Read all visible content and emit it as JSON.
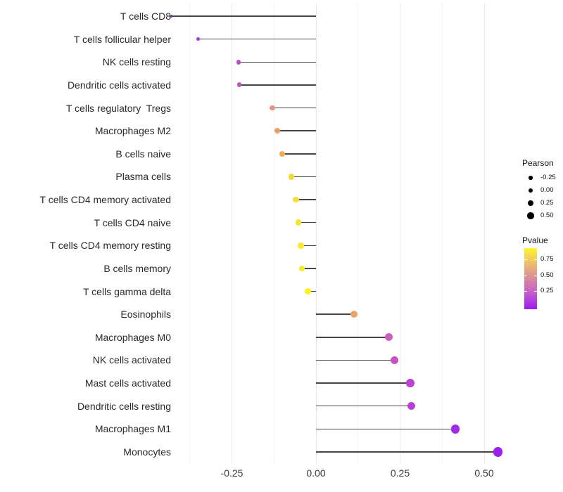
{
  "chart_data": {
    "type": "scatter",
    "variant": "horizontal-lollipop",
    "title": "",
    "xlabel": "",
    "ylabel": "",
    "x_ticks": [
      -0.25,
      0.0,
      0.25,
      0.5
    ],
    "x_minor_gridlines": [
      -0.375,
      -0.125,
      0.125,
      0.375
    ],
    "xlim": [
      -0.46,
      0.59
    ],
    "grid": "vertical major+minor, light gray, white background",
    "points": [
      {
        "label": "T cells CD8",
        "pearson": -0.43,
        "color": "#8322D8"
      },
      {
        "label": "T cells follicular helper",
        "pearson": -0.35,
        "color": "#A637D8"
      },
      {
        "label": "NK cells resting",
        "pearson": -0.23,
        "color": "#BD4EC5"
      },
      {
        "label": "Dendritic cells activated",
        "pearson": -0.228,
        "color": "#C156BE"
      },
      {
        "label": "T cells regulatory  Tregs",
        "pearson": -0.13,
        "color": "#E59879"
      },
      {
        "label": "Macrophages M2",
        "pearson": -0.115,
        "color": "#E8A163"
      },
      {
        "label": "B cells naive",
        "pearson": -0.1,
        "color": "#ECAD55"
      },
      {
        "label": "Plasma cells",
        "pearson": -0.073,
        "color": "#F4D83B"
      },
      {
        "label": "T cells CD4 memory activated",
        "pearson": -0.06,
        "color": "#F6E134"
      },
      {
        "label": "T cells CD4 naive",
        "pearson": -0.052,
        "color": "#F7E52C"
      },
      {
        "label": "T cells CD4 memory resting",
        "pearson": -0.045,
        "color": "#F8E92B"
      },
      {
        "label": "B cells memory",
        "pearson": -0.042,
        "color": "#F8EA28"
      },
      {
        "label": "T cells gamma delta",
        "pearson": -0.025,
        "color": "#FCF414"
      },
      {
        "label": "Eosinophils",
        "pearson": 0.113,
        "color": "#E9A667"
      },
      {
        "label": "Macrophages M0",
        "pearson": 0.217,
        "color": "#CF5FBD"
      },
      {
        "label": "NK cells activated",
        "pearson": 0.234,
        "color": "#C951C6"
      },
      {
        "label": "Mast cells activated",
        "pearson": 0.28,
        "color": "#BC42D3"
      },
      {
        "label": "Dendritic cells resting",
        "pearson": 0.283,
        "color": "#BA40D5"
      },
      {
        "label": "Macrophages M1",
        "pearson": 0.414,
        "color": "#9F2BE5"
      },
      {
        "label": "Monocytes",
        "pearson": 0.54,
        "color": "#9C1FEE"
      }
    ],
    "legend_size": {
      "title": "Pearson",
      "entries": [
        "-0.25",
        "0.00",
        "0.25",
        "0.50"
      ],
      "entry_color": "#000000"
    },
    "legend_color": {
      "title": "Pvalue",
      "tick_labels": [
        "0.75",
        "0.50",
        "0.25"
      ],
      "gradient_stops": [
        {
          "pos": 0.0,
          "color": "#9D1CEF"
        },
        {
          "pos": 0.3,
          "color": "#C863C8"
        },
        {
          "pos": 0.55,
          "color": "#DC9390"
        },
        {
          "pos": 0.78,
          "color": "#EFC567"
        },
        {
          "pos": 1.0,
          "color": "#FBF62B"
        }
      ]
    },
    "style_colors": {
      "stem": "#454545",
      "grid_major": "#e7e7e7",
      "grid_minor": "#f3f3f3",
      "axis_text": "#383838",
      "label_text": "#2a2a2a"
    }
  }
}
